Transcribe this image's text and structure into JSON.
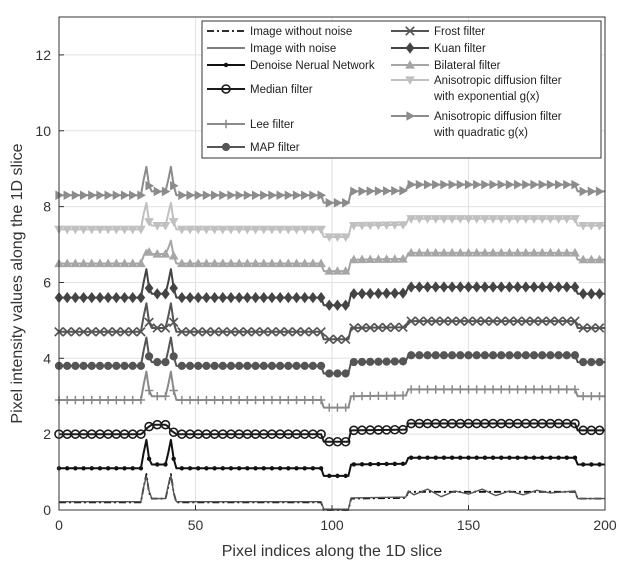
{
  "chart_data": {
    "type": "line",
    "title": "",
    "xlabel": "Pixel indices along the 1D slice",
    "ylabel": "Pixel intensity values along the 1D slice",
    "xlim": [
      0,
      200
    ],
    "ylim": [
      0,
      13
    ],
    "xticks": [
      0,
      50,
      100,
      150,
      200
    ],
    "yticks": [
      0,
      2,
      4,
      6,
      8,
      10,
      12
    ],
    "grid": true,
    "legend_position": "top-center",
    "series": [
      {
        "name": "Image without noise",
        "color": "#111111",
        "marker": "none",
        "dash": "dashdot",
        "base": 0.2,
        "x": [
          0,
          30,
          31,
          32,
          33,
          34,
          39,
          40,
          41,
          42,
          43,
          96,
          97,
          106,
          107,
          127,
          128,
          189,
          190,
          200
        ],
        "values": [
          0.2,
          0.2,
          0.6,
          0.95,
          0.45,
          0.3,
          0.3,
          0.6,
          0.95,
          0.45,
          0.2,
          0.2,
          0.0,
          0.0,
          0.3,
          0.32,
          0.48,
          0.48,
          0.3,
          0.3
        ]
      },
      {
        "name": "Image with noise",
        "color": "#555555",
        "marker": "none",
        "dash": "solid",
        "base": 0.22,
        "x": [
          0,
          30,
          31,
          32,
          33,
          34,
          39,
          40,
          41,
          42,
          43,
          96,
          97,
          106,
          107,
          127,
          128,
          130,
          135,
          140,
          145,
          150,
          155,
          160,
          165,
          170,
          175,
          180,
          189,
          190,
          200
        ],
        "values": [
          0.22,
          0.22,
          0.6,
          0.9,
          0.5,
          0.3,
          0.3,
          0.65,
          0.9,
          0.45,
          0.22,
          0.22,
          0.02,
          0.02,
          0.32,
          0.34,
          0.5,
          0.4,
          0.55,
          0.35,
          0.5,
          0.42,
          0.55,
          0.38,
          0.5,
          0.4,
          0.52,
          0.45,
          0.5,
          0.3,
          0.3
        ]
      },
      {
        "name": "Denoise Nerual Network",
        "color": "#111111",
        "marker": "dot",
        "dash": "solid",
        "base": 1.1,
        "x": [
          0,
          30,
          31,
          32,
          33,
          34,
          39,
          40,
          41,
          42,
          43,
          96,
          97,
          106,
          107,
          127,
          128,
          189,
          190,
          200
        ],
        "values": [
          1.1,
          1.1,
          1.5,
          1.85,
          1.35,
          1.2,
          1.2,
          1.5,
          1.85,
          1.35,
          1.1,
          1.1,
          0.9,
          0.9,
          1.2,
          1.22,
          1.38,
          1.38,
          1.2,
          1.2
        ]
      },
      {
        "name": "Median filter",
        "color": "#1a1a1a",
        "marker": "circle",
        "dash": "solid",
        "base": 2.0,
        "x": [
          0,
          30,
          31,
          32,
          33,
          34,
          39,
          40,
          41,
          42,
          43,
          96,
          97,
          106,
          107,
          127,
          128,
          189,
          190,
          200
        ],
        "values": [
          2.0,
          2.0,
          2.05,
          2.15,
          2.2,
          2.25,
          2.25,
          2.2,
          2.1,
          2.05,
          2.0,
          2.0,
          1.8,
          1.8,
          2.1,
          2.12,
          2.28,
          2.28,
          2.1,
          2.1
        ]
      },
      {
        "name": "Lee filter",
        "color": "#8a8a8a",
        "marker": "plus",
        "dash": "solid",
        "base": 2.9,
        "x": [
          0,
          30,
          31,
          32,
          33,
          34,
          39,
          40,
          41,
          42,
          43,
          96,
          97,
          106,
          107,
          127,
          128,
          189,
          190,
          200
        ],
        "values": [
          2.9,
          2.9,
          3.3,
          3.65,
          3.15,
          3.0,
          3.0,
          3.3,
          3.65,
          3.15,
          2.9,
          2.9,
          2.7,
          2.7,
          3.0,
          3.02,
          3.18,
          3.18,
          3.0,
          3.0
        ]
      },
      {
        "name": "MAP filter",
        "color": "#555555",
        "marker": "filledcircle",
        "dash": "solid",
        "base": 3.8,
        "x": [
          0,
          30,
          31,
          32,
          33,
          34,
          39,
          40,
          41,
          42,
          43,
          96,
          97,
          106,
          107,
          127,
          128,
          189,
          190,
          200
        ],
        "values": [
          3.8,
          3.8,
          4.2,
          4.55,
          4.05,
          3.9,
          3.9,
          4.2,
          4.55,
          4.05,
          3.8,
          3.8,
          3.6,
          3.6,
          3.9,
          3.92,
          4.08,
          4.08,
          3.9,
          3.9
        ]
      },
      {
        "name": "Frost filter",
        "color": "#555555",
        "marker": "x",
        "dash": "solid",
        "base": 4.7,
        "x": [
          0,
          30,
          31,
          32,
          33,
          34,
          39,
          40,
          41,
          42,
          43,
          96,
          97,
          106,
          107,
          127,
          128,
          189,
          190,
          200
        ],
        "values": [
          4.7,
          4.7,
          5.1,
          5.45,
          4.95,
          4.8,
          4.8,
          5.1,
          5.45,
          4.95,
          4.7,
          4.7,
          4.5,
          4.5,
          4.8,
          4.82,
          4.98,
          4.98,
          4.8,
          4.8
        ]
      },
      {
        "name": "Kuan filter",
        "color": "#444444",
        "marker": "diamond",
        "dash": "solid",
        "base": 5.6,
        "x": [
          0,
          30,
          31,
          32,
          33,
          34,
          39,
          40,
          41,
          42,
          43,
          96,
          97,
          106,
          107,
          127,
          128,
          189,
          190,
          200
        ],
        "values": [
          5.6,
          5.6,
          6.0,
          6.35,
          5.85,
          5.7,
          5.7,
          6.0,
          6.35,
          5.85,
          5.6,
          5.6,
          5.4,
          5.4,
          5.7,
          5.72,
          5.88,
          5.88,
          5.7,
          5.7
        ]
      },
      {
        "name": "Bilateral filter",
        "color": "#a6a6a6",
        "marker": "triangle-up",
        "dash": "solid",
        "base": 6.5,
        "x": [
          0,
          30,
          31,
          32,
          33,
          34,
          39,
          40,
          41,
          42,
          43,
          96,
          97,
          106,
          107,
          127,
          128,
          189,
          190,
          200
        ],
        "values": [
          6.5,
          6.5,
          6.7,
          6.85,
          6.8,
          6.75,
          6.75,
          6.9,
          7.1,
          6.7,
          6.5,
          6.5,
          6.3,
          6.3,
          6.6,
          6.62,
          6.78,
          6.78,
          6.6,
          6.6
        ]
      },
      {
        "name": "Anisotropic diffusion filter with exponential g(x)",
        "name_line2": "with exponential g(x)",
        "name_line1": "Anisotropic diffusion filter",
        "color": "#c0c0c0",
        "marker": "triangle-down",
        "dash": "solid",
        "base": 7.4,
        "x": [
          0,
          30,
          31,
          32,
          33,
          34,
          39,
          40,
          41,
          42,
          43,
          96,
          97,
          106,
          107,
          127,
          128,
          189,
          190,
          200
        ],
        "values": [
          7.4,
          7.4,
          7.8,
          8.1,
          7.6,
          7.5,
          7.5,
          7.8,
          8.1,
          7.6,
          7.4,
          7.4,
          7.2,
          7.2,
          7.5,
          7.52,
          7.68,
          7.68,
          7.5,
          7.5
        ]
      },
      {
        "name": "Anisotropic diffusion filter with quadratic g(x)",
        "name_line1": "Anisotropic diffusion filter",
        "name_line2": "with quadratic g(x)",
        "color": "#8c8c8c",
        "marker": "triangle-right",
        "dash": "solid",
        "base": 8.3,
        "x": [
          0,
          30,
          31,
          32,
          33,
          34,
          39,
          40,
          41,
          42,
          43,
          96,
          97,
          106,
          107,
          127,
          128,
          189,
          190,
          200
        ],
        "values": [
          8.3,
          8.3,
          8.7,
          9.05,
          8.55,
          8.4,
          8.4,
          8.7,
          9.05,
          8.55,
          8.3,
          8.3,
          8.1,
          8.1,
          8.4,
          8.42,
          8.58,
          8.58,
          8.4,
          8.4
        ]
      }
    ]
  }
}
